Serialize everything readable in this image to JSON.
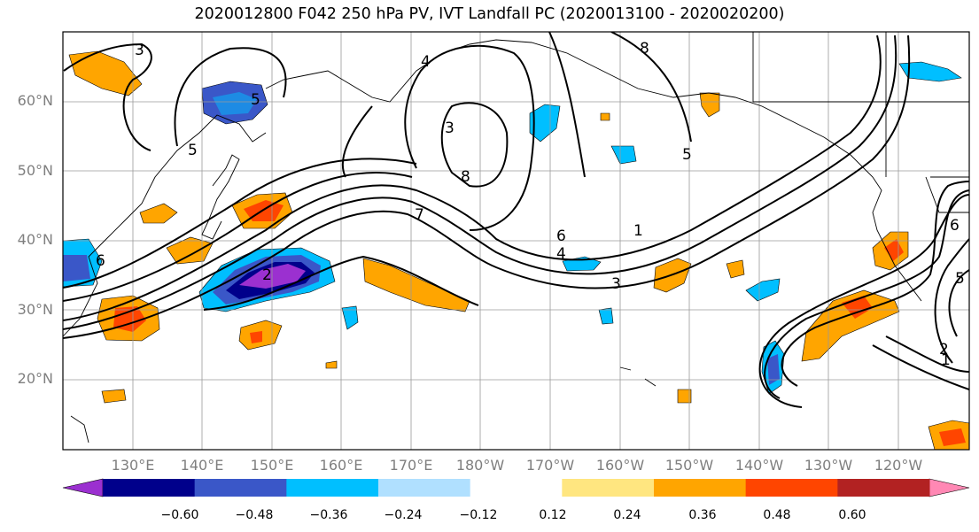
{
  "title": "2020012800 F042 250 hPa PV, IVT Landfall PC (2020013100 - 2020020200)",
  "lat_labels": [
    "60°N",
    "50°N",
    "40°N",
    "30°N",
    "20°N"
  ],
  "lon_labels": [
    "130°E",
    "140°E",
    "150°E",
    "160°E",
    "170°E",
    "180°W",
    "170°W",
    "160°W",
    "150°W",
    "140°W",
    "130°W",
    "120°W"
  ],
  "contour_labels": [
    "3",
    "6",
    "5",
    "5",
    "4",
    "3",
    "8",
    "8",
    "5",
    "7",
    "6",
    "4",
    "1",
    "3",
    "2",
    "6",
    "2",
    "1",
    "5"
  ],
  "colorbar": {
    "colors": [
      "#9b30d0",
      "#00008b",
      "#3a57c8",
      "#00bfff",
      "#b0e0ff",
      "#ffffff",
      "#ffe680",
      "#ffa500",
      "#ff4500",
      "#b22222",
      "#ff88b4"
    ],
    "tick_labels": [
      "−0.60",
      "−0.48",
      "−0.36",
      "−0.24",
      "−0.12",
      "0.12",
      "0.24",
      "0.36",
      "0.48",
      "0.60"
    ]
  }
}
